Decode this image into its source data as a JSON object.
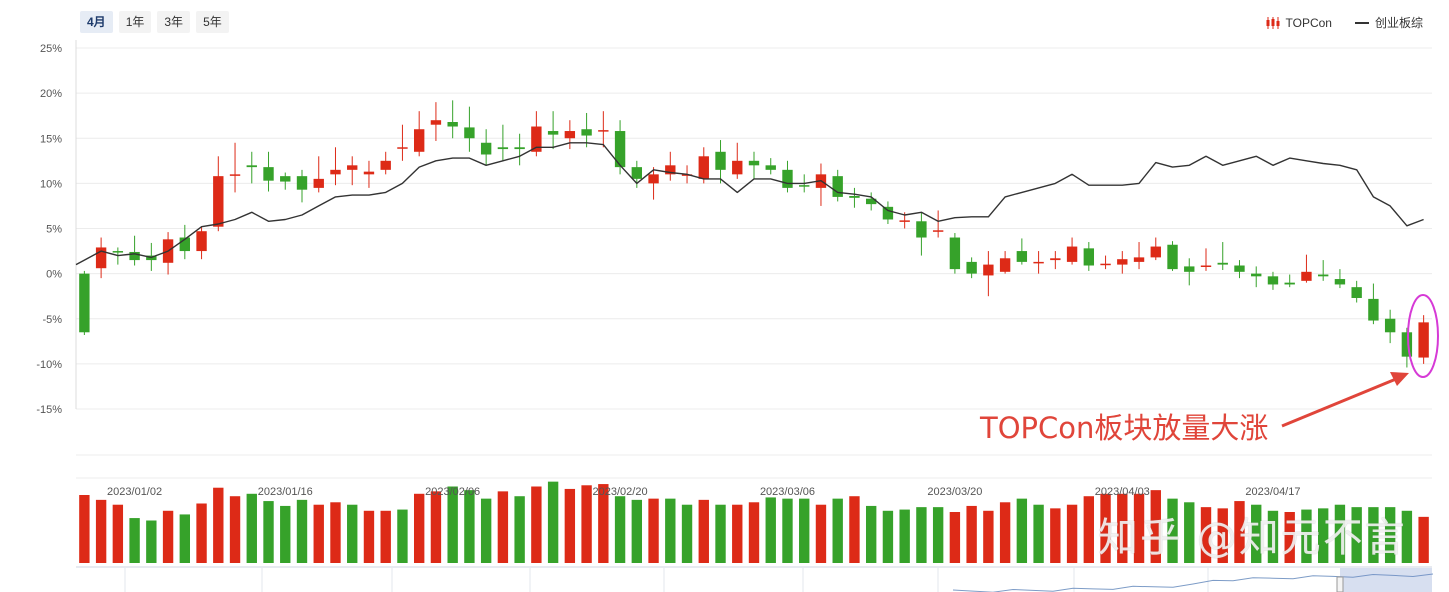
{
  "tabs": [
    "4月",
    "1年",
    "3年",
    "5年"
  ],
  "active_tab": 0,
  "legend": {
    "candle": "TOPCon",
    "line": "创业板综"
  },
  "annotation": "TOPCon板块放量大涨",
  "watermark": "知乎 @知元不言",
  "colors": {
    "up": "#dd2a17",
    "down": "#36a22a",
    "line": "#333333",
    "annotation": "#e0453a",
    "circle": "#d63ad6"
  },
  "chart_data": {
    "type": "candlestick",
    "yticks": [
      "25%",
      "20%",
      "15%",
      "10%",
      "5%",
      "0%",
      "-5%",
      "-10%",
      "-15%"
    ],
    "ylim": [
      -15,
      25
    ],
    "date_labels": [
      {
        "index": 3,
        "label": "2023/01/02"
      },
      {
        "index": 12,
        "label": "2023/01/16"
      },
      {
        "index": 22,
        "label": "2023/02/06"
      },
      {
        "index": 32,
        "label": "2023/02/20"
      },
      {
        "index": 42,
        "label": "2023/03/06"
      },
      {
        "index": 52,
        "label": "2023/03/20"
      },
      {
        "index": 62,
        "label": "2023/04/03"
      },
      {
        "index": 71,
        "label": "2023/04/17"
      }
    ],
    "candles": [
      [
        0,
        -6.5,
        0.3,
        -6.8
      ],
      [
        0.6,
        2.9,
        4.0,
        -0.5
      ],
      [
        2.5,
        2.4,
        2.9,
        1.0
      ],
      [
        2.4,
        1.5,
        4.2,
        0.9
      ],
      [
        2.0,
        1.5,
        3.4,
        0.3
      ],
      [
        1.2,
        3.8,
        4.6,
        -0.1
      ],
      [
        4.0,
        2.5,
        5.4,
        1.6
      ],
      [
        2.5,
        4.7,
        5.2,
        1.6
      ],
      [
        5.2,
        10.8,
        13.0,
        4.7
      ],
      [
        11.0,
        11.0,
        14.5,
        9.0
      ],
      [
        12.0,
        11.8,
        13.5,
        10.0
      ],
      [
        11.8,
        10.3,
        13.5,
        9.1
      ],
      [
        10.8,
        10.2,
        11.2,
        9.3
      ],
      [
        10.8,
        9.3,
        11.5,
        7.9
      ],
      [
        9.5,
        10.5,
        13.0,
        9.0
      ],
      [
        11.0,
        11.5,
        14.0,
        9.8
      ],
      [
        11.5,
        12.0,
        13.0,
        9.8
      ],
      [
        11.0,
        11.3,
        12.5,
        9.5
      ],
      [
        11.5,
        12.5,
        13.5,
        11.0
      ],
      [
        14.0,
        14.0,
        16.5,
        12.5
      ],
      [
        13.5,
        16.0,
        18.0,
        13.0
      ],
      [
        16.5,
        17.0,
        19.0,
        14.7
      ],
      [
        16.8,
        16.3,
        19.2,
        15.0
      ],
      [
        16.2,
        15.0,
        18.5,
        13.5
      ],
      [
        14.5,
        13.2,
        16.0,
        12.0
      ],
      [
        14.0,
        13.8,
        16.5,
        12.5
      ],
      [
        14.0,
        13.8,
        15.5,
        12.0
      ],
      [
        13.5,
        16.3,
        18.0,
        13.0
      ],
      [
        15.8,
        15.4,
        18.0,
        13.8
      ],
      [
        15.0,
        15.8,
        17.0,
        13.8
      ],
      [
        16.0,
        15.3,
        17.8,
        14.0
      ],
      [
        15.8,
        15.9,
        18.0,
        14.0
      ],
      [
        15.8,
        11.8,
        17.0,
        11.0
      ],
      [
        11.8,
        10.5,
        12.5,
        9.5
      ],
      [
        10.0,
        11.0,
        11.8,
        8.2
      ],
      [
        11.0,
        12.0,
        13.5,
        10.3
      ],
      [
        11.0,
        11.0,
        12.0,
        10.0
      ],
      [
        10.5,
        13.0,
        14.0,
        10.0
      ],
      [
        13.5,
        11.5,
        14.8,
        10.0
      ],
      [
        11.0,
        12.5,
        14.5,
        10.5
      ],
      [
        12.5,
        12.0,
        13.5,
        10.5
      ],
      [
        12.0,
        11.5,
        12.8,
        11.0
      ],
      [
        11.5,
        9.5,
        12.5,
        9.0
      ],
      [
        9.8,
        9.7,
        11.0,
        9.0
      ],
      [
        9.5,
        11.0,
        12.2,
        7.5
      ],
      [
        10.8,
        8.5,
        11.5,
        8.0
      ],
      [
        8.6,
        8.4,
        9.5,
        7.3
      ],
      [
        8.3,
        7.7,
        9.0,
        7.0
      ],
      [
        7.4,
        6.0,
        8.0,
        5.5
      ],
      [
        5.9,
        5.9,
        6.8,
        5.0
      ],
      [
        5.8,
        4.0,
        6.8,
        2.0
      ],
      [
        4.8,
        4.8,
        7.0,
        4.0
      ],
      [
        4.0,
        0.5,
        4.5,
        0
      ],
      [
        1.3,
        0,
        1.8,
        -0.5
      ],
      [
        -0.2,
        1.0,
        2.5,
        -2.5
      ],
      [
        0.2,
        1.7,
        2.5,
        0
      ],
      [
        2.5,
        1.3,
        3.9,
        1.0
      ],
      [
        1.3,
        1.3,
        2.5,
        0
      ],
      [
        1.5,
        1.7,
        2.5,
        0.5
      ],
      [
        1.3,
        3.0,
        4.0,
        1.0
      ],
      [
        2.8,
        0.9,
        3.5,
        0.3
      ],
      [
        1.1,
        1.1,
        2.0,
        0.5
      ],
      [
        1.0,
        1.6,
        2.5,
        0
      ],
      [
        1.3,
        1.8,
        3.5,
        0.5
      ],
      [
        1.8,
        3.0,
        4.0,
        1.5
      ],
      [
        3.2,
        0.5,
        3.6,
        0.3
      ],
      [
        0.8,
        0.2,
        1.7,
        -1.3
      ],
      [
        0.9,
        0.9,
        2.8,
        0.3
      ],
      [
        1.2,
        1.0,
        3.5,
        0.4
      ],
      [
        0.9,
        0.2,
        1.5,
        -0.5
      ],
      [
        0,
        -0.3,
        0.8,
        -1.5
      ],
      [
        -0.3,
        -1.2,
        0.2,
        -1.8
      ],
      [
        -1.0,
        -1.2,
        -0.1,
        -1.5
      ],
      [
        -0.8,
        0.2,
        2.1,
        -1.0
      ],
      [
        -0.1,
        -0.3,
        1.5,
        -0.8
      ],
      [
        -0.6,
        -1.2,
        0.5,
        -1.6
      ],
      [
        -1.5,
        -2.7,
        -0.8,
        -3.2
      ],
      [
        -2.8,
        -5.2,
        -1.1,
        -5.6
      ],
      [
        -5.0,
        -6.5,
        -4.0,
        -7.7
      ],
      [
        -6.5,
        -9.2,
        -6.0,
        -10.4
      ],
      [
        -9.3,
        -5.4,
        -4.6,
        -10.0
      ]
    ],
    "index_line": [
      1.5,
      2.5,
      2.0,
      2.2,
      1.8,
      2.5,
      3.8,
      5.2,
      5.5,
      6.0,
      6.8,
      5.8,
      6.0,
      6.5,
      7.5,
      8.5,
      8.7,
      8.7,
      9.0,
      10.0,
      11.8,
      12.5,
      12.8,
      12.8,
      12.0,
      12.5,
      13.0,
      14.0,
      14.0,
      14.5,
      14.5,
      14.3,
      12.0,
      10.0,
      11.5,
      11.2,
      11.0,
      10.5,
      10.5,
      9.0,
      10.5,
      10.5,
      10.0,
      10.0,
      10.3,
      9.0,
      8.8,
      8.5,
      7.0,
      6.5,
      6.8,
      5.8,
      6.2,
      6.3,
      6.3,
      8.5,
      9.0,
      9.5,
      10.0,
      11.0,
      9.8,
      9.8,
      9.8,
      10.0,
      12.3,
      11.8,
      12.0,
      13.0,
      12.0,
      12.5,
      13.0,
      12.0,
      12.8,
      12.5,
      12.2,
      12.0,
      11.5,
      8.5,
      7.5,
      5.3,
      6.0
    ],
    "volume_direction": [
      "up",
      "up",
      "up",
      "down",
      "down",
      "up",
      "down",
      "up",
      "up",
      "up",
      "down",
      "down",
      "down",
      "down",
      "up",
      "up",
      "down",
      "up",
      "up",
      "down",
      "up",
      "up",
      "down",
      "down",
      "down",
      "up",
      "down",
      "up",
      "down",
      "up",
      "up",
      "up",
      "down",
      "down",
      "up",
      "down",
      "down",
      "up",
      "down",
      "up",
      "up",
      "down",
      "down",
      "down",
      "up",
      "down",
      "up",
      "down",
      "down",
      "down",
      "down",
      "down",
      "up",
      "up",
      "up",
      "up",
      "down",
      "down",
      "up",
      "up",
      "up",
      "up",
      "up",
      "up",
      "up",
      "down",
      "down",
      "up",
      "up",
      "up",
      "down",
      "down",
      "up",
      "down",
      "down",
      "down",
      "down",
      "down",
      "down",
      "down",
      "up"
    ],
    "volume_values": [
      56,
      52,
      48,
      37,
      35,
      43,
      40,
      49,
      62,
      55,
      57,
      51,
      47,
      52,
      48,
      50,
      48,
      43,
      43,
      44,
      57,
      59,
      63,
      60,
      53,
      59,
      55,
      63,
      67,
      61,
      64,
      65,
      55,
      52,
      53,
      53,
      48,
      52,
      48,
      48,
      50,
      54,
      53,
      53,
      48,
      53,
      55,
      47,
      43,
      44,
      46,
      46,
      42,
      47,
      43,
      50,
      53,
      48,
      45,
      48,
      55,
      57,
      57,
      57,
      60,
      53,
      50,
      46,
      45,
      51,
      48,
      43,
      42,
      44,
      45,
      48,
      46,
      46,
      46,
      43,
      38
    ]
  }
}
